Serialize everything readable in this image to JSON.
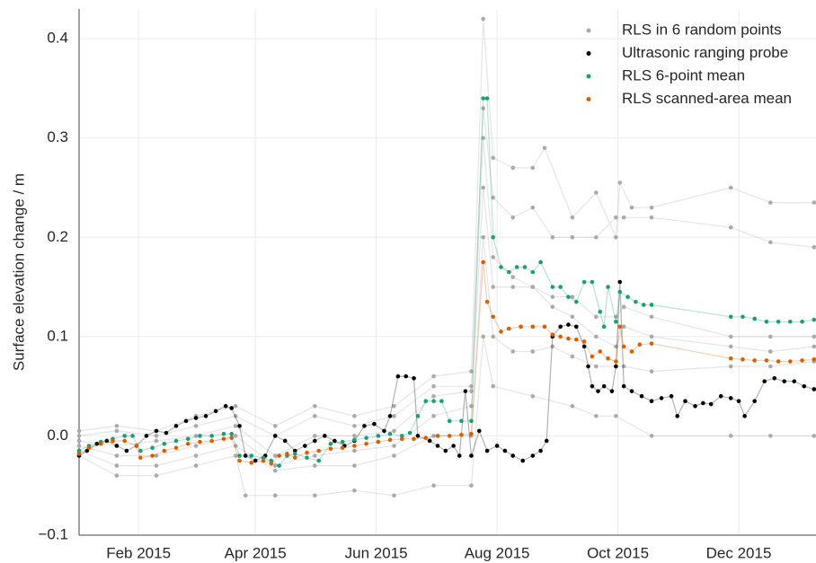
{
  "chart_data": {
    "type": "scatter",
    "ylabel": "Surface elevation change / m",
    "xlim": [
      1,
      373
    ],
    "ylim": [
      -0.1,
      0.43
    ],
    "xticks": [
      {
        "value": 31,
        "label": "Feb 2015"
      },
      {
        "value": 90,
        "label": "Apr 2015"
      },
      {
        "value": 151,
        "label": "Jun 2015"
      },
      {
        "value": 212,
        "label": "Aug 2015"
      },
      {
        "value": 273,
        "label": "Oct 2015"
      },
      {
        "value": 334,
        "label": "Dec 2015"
      }
    ],
    "yticks": [
      {
        "value": -0.1,
        "label": "−0.1"
      },
      {
        "value": 0,
        "label": "0.0"
      },
      0.1,
      0.2,
      0.3,
      0.4
    ],
    "grid": true,
    "legend": "upper right",
    "series": [
      {
        "name": "RLS in 6 random points",
        "color": "#aaaaaa",
        "x": [
          1,
          20,
          40,
          60,
          80,
          100,
          120,
          140,
          160,
          180,
          199,
          205,
          210,
          220,
          230,
          236,
          250,
          262,
          272,
          274,
          280,
          290,
          330,
          350,
          372,
          null,
          1,
          20,
          40,
          60,
          80,
          100,
          120,
          140,
          160,
          180,
          199,
          205,
          210,
          220,
          230,
          240,
          250,
          262,
          272,
          276,
          290,
          330,
          350,
          372,
          null,
          1,
          20,
          40,
          60,
          80,
          100,
          120,
          140,
          160,
          180,
          199,
          205,
          210,
          220,
          230,
          240,
          250,
          262,
          272,
          276,
          290,
          330,
          350,
          372,
          null,
          1,
          20,
          40,
          60,
          80,
          100,
          120,
          140,
          160,
          180,
          199,
          205,
          210,
          220,
          230,
          240,
          250,
          262,
          272,
          276,
          290,
          330,
          350,
          372,
          null,
          1,
          20,
          40,
          60,
          80,
          100,
          120,
          140,
          160,
          180,
          199,
          205,
          210,
          220,
          230,
          240,
          250,
          262,
          272,
          276,
          290,
          330,
          350,
          372,
          null,
          1,
          20,
          40,
          60,
          80,
          85,
          100,
          120,
          140,
          160,
          180,
          199,
          205,
          210,
          230,
          250,
          262,
          272,
          290,
          330,
          350,
          372
        ],
        "values": [
          0.005,
          0.01,
          0.005,
          0.02,
          0.03,
          0.01,
          0.03,
          0.02,
          0.03,
          0.06,
          0.065,
          0.42,
          0.28,
          0.27,
          0.27,
          0.29,
          0.22,
          0.245,
          0.2,
          0.255,
          0.23,
          0.23,
          0.25,
          0.235,
          0.235,
          null,
          0.0,
          0.005,
          0.0,
          0.01,
          0.02,
          0.0,
          0.02,
          0.01,
          0.02,
          0.05,
          0.05,
          0.33,
          0.24,
          0.22,
          0.23,
          0.2,
          0.2,
          0.2,
          0.22,
          0.22,
          0.22,
          0.21,
          0.195,
          0.19,
          null,
          -0.005,
          -0.01,
          -0.005,
          0.0,
          0.01,
          -0.02,
          0.0,
          0.0,
          0.005,
          0.04,
          0.045,
          0.3,
          0.18,
          0.16,
          0.15,
          0.14,
          0.14,
          0.12,
          0.12,
          0.13,
          0.12,
          0.1,
          0.1,
          0.1,
          null,
          -0.01,
          -0.02,
          -0.02,
          -0.01,
          0.0,
          -0.03,
          -0.02,
          -0.015,
          -0.01,
          0.02,
          0.03,
          0.25,
          0.15,
          0.15,
          0.15,
          0.13,
          0.12,
          0.1,
          0.09,
          0.11,
          0.1,
          0.09,
          0.085,
          0.09,
          null,
          -0.015,
          -0.03,
          -0.03,
          -0.02,
          -0.01,
          -0.035,
          -0.03,
          -0.03,
          -0.02,
          0.0,
          0.0,
          0.2,
          0.1,
          0.085,
          0.085,
          0.09,
          0.08,
          0.07,
          0.07,
          0.07,
          0.065,
          0.07,
          0.07,
          0.075,
          null,
          -0.02,
          -0.04,
          -0.04,
          -0.03,
          -0.02,
          -0.06,
          -0.06,
          -0.06,
          -0.055,
          -0.06,
          -0.05,
          -0.05,
          0.1,
          0.05,
          0.04,
          0.03,
          0.02,
          0.02,
          0.0,
          0.0,
          0.0,
          0.0
        ]
      },
      {
        "name": "Ultrasonic ranging probe",
        "color": "#000000",
        "x": [
          1,
          5,
          10,
          15,
          20,
          25,
          30,
          35,
          40,
          45,
          50,
          55,
          60,
          65,
          70,
          75,
          78,
          82,
          85,
          90,
          95,
          100,
          105,
          110,
          115,
          120,
          125,
          130,
          135,
          140,
          145,
          150,
          155,
          158,
          162,
          166,
          170,
          172,
          178,
          182,
          186,
          190,
          193,
          196,
          199,
          203,
          207,
          212,
          216,
          220,
          225,
          230,
          234,
          237,
          240,
          244,
          248,
          252,
          256,
          258,
          260,
          263,
          266,
          270,
          272,
          274,
          276,
          280,
          285,
          290,
          295,
          300,
          303,
          307,
          312,
          316,
          320,
          325,
          330,
          334,
          337,
          342,
          347,
          352,
          357,
          362,
          367,
          372
        ],
        "values": [
          -0.02,
          -0.015,
          -0.008,
          -0.005,
          -0.01,
          -0.015,
          -0.01,
          0.0,
          0.005,
          0.003,
          0.01,
          0.015,
          0.018,
          0.02,
          0.025,
          0.03,
          0.028,
          0.01,
          -0.02,
          -0.025,
          -0.02,
          0.0,
          -0.005,
          -0.015,
          -0.01,
          -0.005,
          0.0,
          -0.005,
          -0.01,
          -0.005,
          0.01,
          0.012,
          0.005,
          0.02,
          0.06,
          0.06,
          0.058,
          0.0,
          -0.005,
          -0.01,
          -0.015,
          -0.01,
          -0.02,
          0.045,
          -0.02,
          0.005,
          -0.015,
          -0.01,
          -0.015,
          -0.02,
          -0.025,
          -0.02,
          -0.015,
          -0.005,
          0.1,
          0.11,
          0.112,
          0.11,
          0.09,
          0.07,
          0.05,
          0.045,
          0.05,
          0.045,
          0.07,
          0.155,
          0.05,
          0.045,
          0.04,
          0.035,
          0.038,
          0.04,
          0.02,
          0.035,
          0.03,
          0.033,
          0.032,
          0.04,
          0.038,
          0.035,
          0.02,
          0.035,
          0.055,
          0.058,
          0.055,
          0.055,
          0.05,
          0.047
        ]
      },
      {
        "name": "RLS 6-point mean",
        "color": "#1b9e77",
        "x": [
          1,
          6,
          12,
          18,
          24,
          28,
          32,
          38,
          44,
          50,
          56,
          62,
          68,
          74,
          78,
          82,
          88,
          94,
          98,
          102,
          106,
          110,
          116,
          122,
          128,
          134,
          140,
          146,
          152,
          158,
          164,
          168,
          172,
          176,
          180,
          184,
          188,
          194,
          199,
          205,
          207,
          210,
          214,
          218,
          222,
          226,
          230,
          234,
          240,
          244,
          248,
          252,
          256,
          260,
          264,
          266,
          268,
          272,
          274,
          278,
          282,
          286,
          290,
          330,
          336,
          342,
          348,
          354,
          360,
          366,
          372
        ],
        "values": [
          -0.015,
          -0.01,
          -0.006,
          -0.003,
          0.0,
          0.0,
          -0.015,
          -0.012,
          -0.008,
          -0.005,
          -0.003,
          0.0,
          0.0,
          0.002,
          0.002,
          -0.02,
          -0.02,
          -0.022,
          -0.025,
          -0.03,
          -0.02,
          -0.018,
          -0.022,
          -0.025,
          -0.008,
          -0.006,
          -0.004,
          -0.002,
          0.0,
          0.002,
          0.0,
          0.003,
          0.02,
          0.035,
          0.035,
          0.035,
          0.015,
          0.015,
          0.015,
          0.34,
          0.34,
          0.2,
          0.17,
          0.165,
          0.17,
          0.17,
          0.165,
          0.175,
          0.15,
          0.15,
          0.14,
          0.135,
          0.155,
          0.155,
          0.125,
          0.11,
          0.15,
          0.115,
          0.145,
          0.14,
          0.135,
          0.132,
          0.132,
          0.12,
          0.12,
          0.118,
          0.115,
          0.115,
          0.115,
          0.115,
          0.117
        ]
      },
      {
        "name": "RLS scanned-area mean",
        "color": "#d95f02",
        "x": [
          1,
          6,
          12,
          18,
          24,
          30,
          32,
          38,
          44,
          50,
          56,
          62,
          68,
          74,
          78,
          82,
          88,
          94,
          98,
          102,
          106,
          110,
          116,
          122,
          128,
          134,
          140,
          146,
          152,
          158,
          164,
          170,
          176,
          182,
          188,
          194,
          199,
          205,
          207,
          210,
          214,
          218,
          224,
          230,
          236,
          240,
          244,
          248,
          252,
          256,
          260,
          264,
          268,
          272,
          274,
          276,
          280,
          284,
          290,
          330,
          336,
          342,
          348,
          354,
          360,
          366,
          372
        ],
        "values": [
          -0.018,
          -0.012,
          -0.008,
          -0.005,
          -0.005,
          -0.01,
          -0.022,
          -0.02,
          -0.015,
          -0.012,
          -0.008,
          -0.006,
          -0.005,
          -0.003,
          -0.002,
          -0.025,
          -0.027,
          -0.025,
          -0.028,
          -0.02,
          -0.018,
          -0.022,
          -0.017,
          -0.015,
          -0.013,
          -0.012,
          -0.01,
          -0.008,
          -0.006,
          -0.004,
          -0.003,
          -0.003,
          -0.002,
          0.0,
          0.0,
          0.001,
          0.002,
          0.175,
          0.135,
          0.12,
          0.105,
          0.108,
          0.11,
          0.11,
          0.11,
          0.102,
          0.1,
          0.098,
          0.097,
          0.095,
          0.08,
          0.085,
          0.078,
          0.075,
          0.11,
          0.09,
          0.085,
          0.092,
          0.093,
          0.078,
          0.077,
          0.076,
          0.076,
          0.075,
          0.075,
          0.076,
          0.077
        ]
      }
    ]
  }
}
